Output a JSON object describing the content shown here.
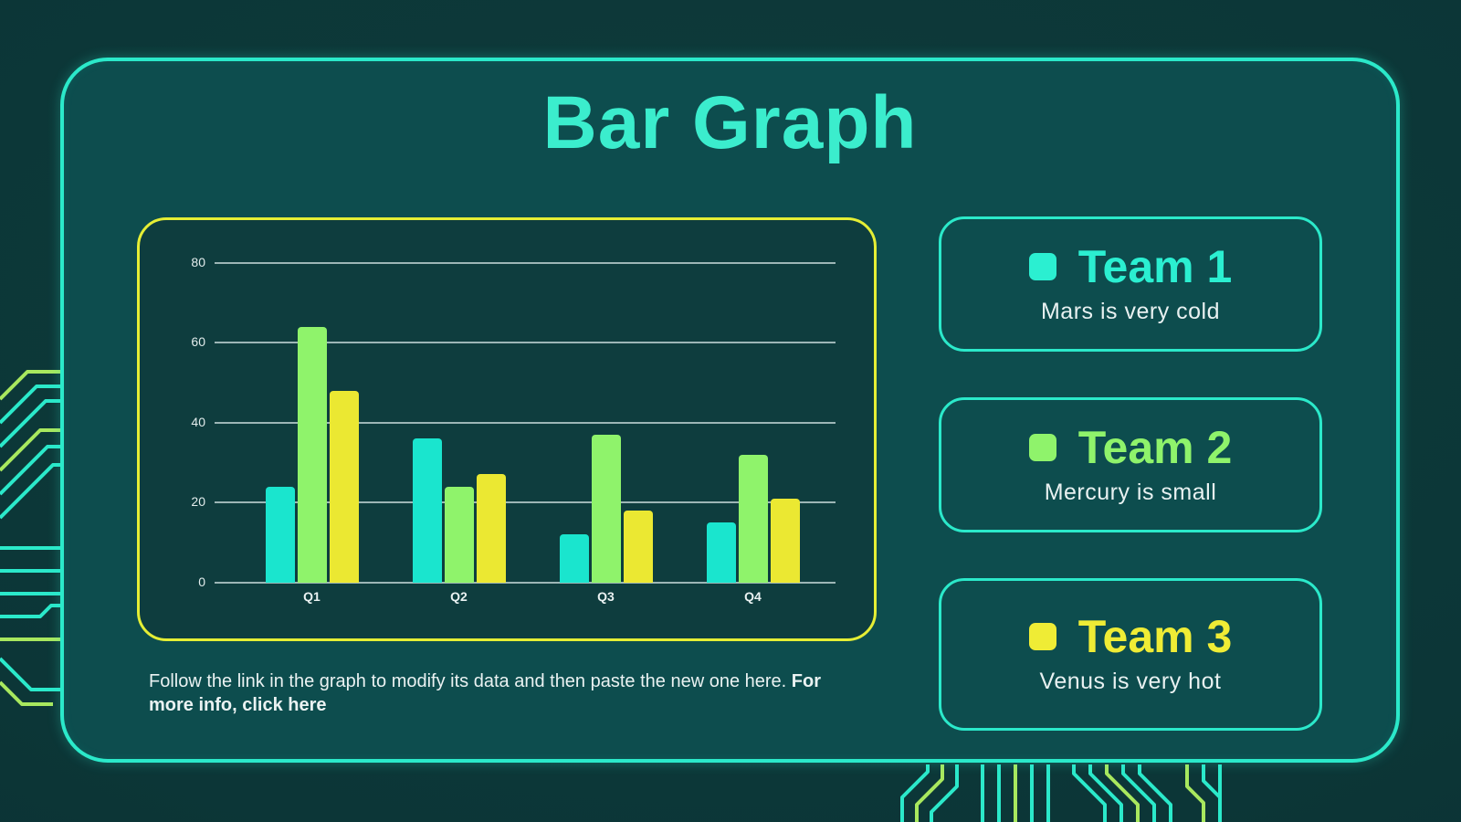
{
  "slide": {
    "title": "Bar Graph"
  },
  "chart_data": {
    "type": "bar",
    "title": "",
    "xlabel": "",
    "ylabel": "",
    "categories": [
      "Q1",
      "Q2",
      "Q3",
      "Q4"
    ],
    "series": [
      {
        "name": "Team 1",
        "color": "#1ae5ce",
        "values": [
          24,
          36,
          12,
          15
        ]
      },
      {
        "name": "Team 2",
        "color": "#8ff36b",
        "values": [
          64,
          24,
          37,
          32
        ]
      },
      {
        "name": "Team 3",
        "color": "#ebe832",
        "values": [
          48,
          27,
          18,
          21
        ]
      }
    ],
    "ylim": [
      0,
      80
    ],
    "yticks": [
      0,
      20,
      40,
      60,
      80
    ],
    "grid": true,
    "legend_position": "right-cards"
  },
  "legend_cards": [
    {
      "label": "Team 1",
      "description": "Mars is very cold",
      "color": "#2befd1"
    },
    {
      "label": "Team 2",
      "description": "Mercury is small",
      "color": "#8ff36b"
    },
    {
      "label": "Team 3",
      "description": "Venus is very hot",
      "color": "#efec35"
    }
  ],
  "footer": {
    "text_regular": "Follow the link in the graph to modify its data and then paste the new one here.",
    "text_bold": "For more info, click here"
  },
  "colors": {
    "background": "#0c3637",
    "panel": "#0d4d4e",
    "panel_border": "#2be9ca",
    "chart_background": "#0e3d3e",
    "chart_border": "#e5ee35",
    "title_accent": "#3bedcd",
    "circuit_cyan": "#2be9ca",
    "circuit_green": "#a8e85e",
    "gridline": "#d6e4e4",
    "text_light": "#eaf2f2"
  }
}
